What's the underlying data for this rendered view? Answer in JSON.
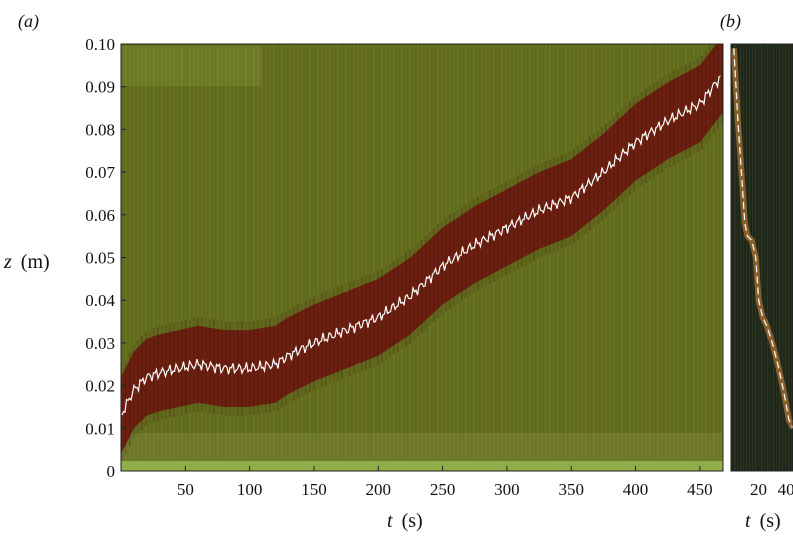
{
  "chart_data": [
    {
      "panel": "(a)",
      "type": "heatmap",
      "xlabel_var": "t",
      "xlabel_unit": "(s)",
      "ylabel_var": "z",
      "ylabel_unit": "(m)",
      "xlim": [
        0,
        468
      ],
      "ylim": [
        0,
        0.1
      ],
      "x_ticks": [
        "50",
        "100",
        "150",
        "200",
        "250",
        "300",
        "350",
        "400",
        "450"
      ],
      "x_tick_values": [
        50,
        100,
        150,
        200,
        250,
        300,
        350,
        400,
        450
      ],
      "y_ticks": [
        "0",
        "0.01",
        "0.02",
        "0.03",
        "0.04",
        "0.05",
        "0.06",
        "0.07",
        "0.08",
        "0.09",
        "0.10"
      ],
      "y_tick_values": [
        0,
        0.01,
        0.02,
        0.03,
        0.04,
        0.05,
        0.06,
        0.07,
        0.08,
        0.09,
        0.1
      ],
      "colors": {
        "background": "#5f6a1b",
        "band": "#6e1a0f",
        "trace": "#ffffff",
        "bottom": "#8fae4a"
      },
      "band_halfwidth": 0.009,
      "series": [
        {
          "t": [
            0,
            10,
            20,
            30,
            45,
            60,
            80,
            100,
            120,
            130,
            150,
            175,
            200,
            225,
            250,
            275,
            300,
            325,
            350,
            375,
            400,
            425,
            450,
            468
          ],
          "z": [
            0.013,
            0.019,
            0.022,
            0.023,
            0.024,
            0.025,
            0.024,
            0.024,
            0.025,
            0.027,
            0.03,
            0.033,
            0.036,
            0.041,
            0.048,
            0.053,
            0.057,
            0.061,
            0.064,
            0.07,
            0.077,
            0.082,
            0.086,
            0.093
          ]
        }
      ]
    },
    {
      "panel": "(b)",
      "type": "line",
      "xlabel_var": "t",
      "xlabel_unit": "(s)",
      "xlim": [
        0,
        45
      ],
      "ylim": [
        0,
        0.1
      ],
      "x_ticks": [
        "20",
        "40"
      ],
      "x_tick_values": [
        20,
        40
      ],
      "colors": {
        "background": "#1e2619",
        "trace": "#ffffff",
        "glow": "#d98a3a"
      },
      "series": [
        {
          "t": [
            2,
            5,
            8,
            10,
            12,
            15,
            18,
            20,
            23,
            26,
            30,
            34,
            38,
            42,
            45
          ],
          "z": [
            0.099,
            0.082,
            0.068,
            0.058,
            0.055,
            0.054,
            0.05,
            0.04,
            0.036,
            0.034,
            0.03,
            0.025,
            0.019,
            0.012,
            0.01
          ]
        }
      ]
    }
  ]
}
